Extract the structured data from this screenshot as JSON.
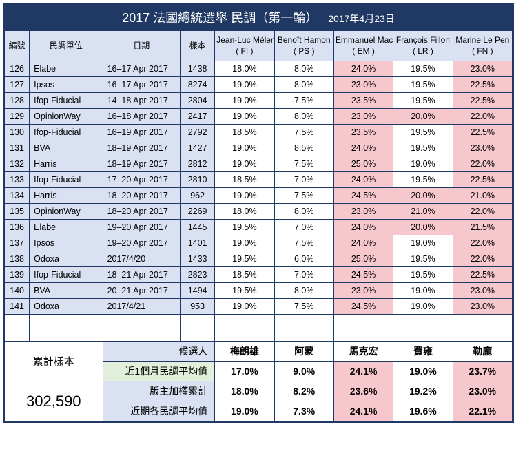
{
  "title_main": "2017 法國總統選舉 民調（第一輪）",
  "title_sub": "2017年4月23日",
  "headers": {
    "idx": "編號",
    "org": "民調單位",
    "date": "日期",
    "sample": "樣本",
    "candidates": [
      {
        "name": "Jean-Luc Mélenchon",
        "party": "( FI )"
      },
      {
        "name": "Benoît Hamon",
        "party": "( PS )"
      },
      {
        "name": "Emmanuel Macron",
        "party": "( EM )"
      },
      {
        "name": "François Fillon",
        "party": "( LR )"
      },
      {
        "name": "Marine Le Pen",
        "party": "( FN )"
      }
    ]
  },
  "rows": [
    {
      "idx": "126",
      "org": "Elabe",
      "date": "16–17 Apr 2017",
      "sample": "1438",
      "v": [
        "18.0%",
        "8.0%",
        "24.0%",
        "19.5%",
        "23.0%"
      ],
      "hl": [
        false,
        false,
        true,
        false,
        true
      ]
    },
    {
      "idx": "127",
      "org": "Ipsos",
      "date": "16–17 Apr 2017",
      "sample": "8274",
      "v": [
        "19.0%",
        "8.0%",
        "23.0%",
        "19.5%",
        "22.5%"
      ],
      "hl": [
        false,
        false,
        true,
        false,
        true
      ]
    },
    {
      "idx": "128",
      "org": "Ifop-Fiducial",
      "date": "14–18 Apr 2017",
      "sample": "2804",
      "v": [
        "19.0%",
        "7.5%",
        "23.5%",
        "19.5%",
        "22.5%"
      ],
      "hl": [
        false,
        false,
        true,
        false,
        true
      ]
    },
    {
      "idx": "129",
      "org": "OpinionWay",
      "date": "16–18 Apr 2017",
      "sample": "2417",
      "v": [
        "19.0%",
        "8.0%",
        "23.0%",
        "20.0%",
        "22.0%"
      ],
      "hl": [
        false,
        false,
        true,
        true,
        true
      ]
    },
    {
      "idx": "130",
      "org": "Ifop-Fiducial",
      "date": "16–19 Apr 2017",
      "sample": "2792",
      "v": [
        "18.5%",
        "7.5%",
        "23.5%",
        "19.5%",
        "22.5%"
      ],
      "hl": [
        false,
        false,
        true,
        false,
        true
      ]
    },
    {
      "idx": "131",
      "org": "BVA",
      "date": "18–19 Apr 2017",
      "sample": "1427",
      "v": [
        "19.0%",
        "8.5%",
        "24.0%",
        "19.5%",
        "23.0%"
      ],
      "hl": [
        false,
        false,
        true,
        false,
        true
      ]
    },
    {
      "idx": "132",
      "org": "Harris",
      "date": "18–19 Apr 2017",
      "sample": "2812",
      "v": [
        "19.0%",
        "7.5%",
        "25.0%",
        "19.0%",
        "22.0%"
      ],
      "hl": [
        false,
        false,
        true,
        false,
        true
      ]
    },
    {
      "idx": "133",
      "org": "Ifop-Fiducial",
      "date": "17–20 Apr 2017",
      "sample": "2810",
      "v": [
        "18.5%",
        "7.0%",
        "24.0%",
        "19.5%",
        "22.5%"
      ],
      "hl": [
        false,
        false,
        true,
        false,
        true
      ]
    },
    {
      "idx": "134",
      "org": "Harris",
      "date": "18–20 Apr 2017",
      "sample": "962",
      "v": [
        "19.0%",
        "7.5%",
        "24.5%",
        "20.0%",
        "21.0%"
      ],
      "hl": [
        false,
        false,
        true,
        true,
        true
      ]
    },
    {
      "idx": "135",
      "org": "OpinionWay",
      "date": "18–20 Apr 2017",
      "sample": "2269",
      "v": [
        "18.0%",
        "8.0%",
        "23.0%",
        "21.0%",
        "22.0%"
      ],
      "hl": [
        false,
        false,
        true,
        true,
        true
      ]
    },
    {
      "idx": "136",
      "org": "Elabe",
      "date": "19–20 Apr 2017",
      "sample": "1445",
      "v": [
        "19.5%",
        "7.0%",
        "24.0%",
        "20.0%",
        "21.5%"
      ],
      "hl": [
        false,
        false,
        true,
        true,
        true
      ]
    },
    {
      "idx": "137",
      "org": "Ipsos",
      "date": "19–20 Apr 2017",
      "sample": "1401",
      "v": [
        "19.0%",
        "7.5%",
        "24.0%",
        "19.0%",
        "22.0%"
      ],
      "hl": [
        false,
        false,
        true,
        false,
        true
      ]
    },
    {
      "idx": "138",
      "org": "Odoxa",
      "date": "2017/4/20",
      "sample": "1433",
      "v": [
        "19.5%",
        "6.0%",
        "25.0%",
        "19.5%",
        "22.0%"
      ],
      "hl": [
        false,
        false,
        true,
        false,
        true
      ]
    },
    {
      "idx": "139",
      "org": "Ifop-Fiducial",
      "date": "18–21 Apr 2017",
      "sample": "2823",
      "v": [
        "18.5%",
        "7.0%",
        "24.5%",
        "19.5%",
        "22.5%"
      ],
      "hl": [
        false,
        false,
        true,
        false,
        true
      ]
    },
    {
      "idx": "140",
      "org": "BVA",
      "date": "20–21 Apr 2017",
      "sample": "1494",
      "v": [
        "19.5%",
        "8.0%",
        "23.0%",
        "19.0%",
        "23.0%"
      ],
      "hl": [
        false,
        false,
        true,
        false,
        true
      ]
    },
    {
      "idx": "141",
      "org": "Odoxa",
      "date": "2017/4/21",
      "sample": "953",
      "v": [
        "19.0%",
        "7.5%",
        "24.5%",
        "19.0%",
        "23.0%"
      ],
      "hl": [
        false,
        false,
        true,
        false,
        true
      ]
    }
  ],
  "summary": {
    "left_label": "累計樣本",
    "left_total": "302,590",
    "cand_header": "候選人",
    "cand_names": [
      "梅朗雄",
      "阿蒙",
      "馬克宏",
      "費雍",
      "勒龐"
    ],
    "rows": [
      {
        "label": "近1個月民調平均值",
        "green": true,
        "v": [
          "17.0%",
          "9.0%",
          "24.1%",
          "19.0%",
          "23.7%"
        ],
        "hl": [
          false,
          false,
          true,
          false,
          true
        ]
      },
      {
        "label": "版主加權累計",
        "green": false,
        "v": [
          "18.0%",
          "8.2%",
          "23.6%",
          "19.2%",
          "23.0%"
        ],
        "hl": [
          false,
          false,
          true,
          false,
          true
        ]
      },
      {
        "label": "近期各民調平均值",
        "green": false,
        "v": [
          "19.0%",
          "7.3%",
          "24.1%",
          "19.6%",
          "22.1%"
        ],
        "hl": [
          false,
          false,
          true,
          false,
          true
        ]
      }
    ]
  }
}
